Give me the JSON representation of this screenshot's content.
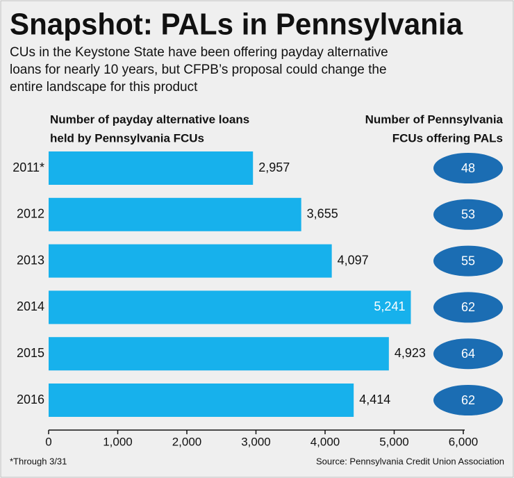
{
  "chart_data": {
    "type": "bar",
    "title": "Snapshot: PALs in Pennsylvania",
    "subtitle": [
      "CUs in the Keystone State have been offering payday alternative",
      "loans for nearly 10 years, but CFPB’s proposal could change the",
      "entire landscape for this product"
    ],
    "categories": [
      "2011*",
      "2012",
      "2013",
      "2014",
      "2015",
      "2016"
    ],
    "series": [
      {
        "name_lines": [
          "Number of payday alternative loans",
          "held by Pennsylvania FCUs"
        ],
        "color": "#17b1ec",
        "values": [
          2957,
          3655,
          4097,
          5241,
          4923,
          4414
        ],
        "value_labels": [
          "2,957",
          "3,655",
          "4,097",
          "5,241",
          "4,923",
          "4,414"
        ]
      },
      {
        "name_lines": [
          "Number of Pennsylvania",
          "FCUs offering PALs"
        ],
        "color": "#1b6db3",
        "values": [
          48,
          53,
          55,
          62,
          64,
          62
        ]
      }
    ],
    "xlim": [
      0,
      6000
    ],
    "xticks": [
      0,
      {
        "value": 1000,
        "label": "1,000"
      },
      {
        "value": 2000,
        "label": "2,000"
      },
      {
        "value": 3000,
        "label": "3,000"
      },
      {
        "value": 4000,
        "label": "4,000"
      },
      {
        "value": 5000,
        "label": "5,000"
      },
      {
        "value": 6000,
        "label": "6,000"
      }
    ],
    "footnote": "*Through 3/31",
    "source": "Source: Pennsylvania Credit Union Association"
  }
}
